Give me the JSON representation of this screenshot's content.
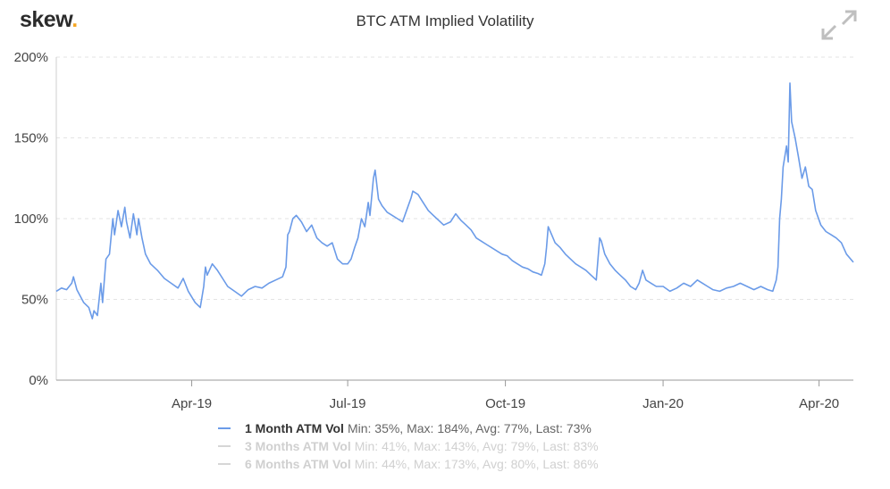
{
  "brand": {
    "name": "skew",
    "dot": ".",
    "accent": "#f5a623"
  },
  "header": {
    "title": "BTC ATM Implied Volatility",
    "expand_icon": "expand-arrows-icon"
  },
  "chart_data": {
    "type": "line",
    "title": "BTC ATM Implied Volatility",
    "xlabel": "",
    "ylabel": "",
    "y_unit": "%",
    "ylim": [
      0,
      200
    ],
    "yticks": [
      0,
      50,
      100,
      150,
      200
    ],
    "ytick_labels": [
      "0%",
      "50%",
      "100%",
      "150%",
      "200%"
    ],
    "xlim": [
      "2019-01-12",
      "2020-04-21"
    ],
    "xticks": [
      "2019-04-01",
      "2019-07-01",
      "2019-10-01",
      "2020-01-01",
      "2020-04-01"
    ],
    "xtick_labels": [
      "Apr-19",
      "Jul-19",
      "Oct-19",
      "Jan-20",
      "Apr-20"
    ],
    "grid": "horizontal dashed",
    "legend_position": "bottom",
    "series": [
      {
        "name": "1 Month ATM Vol",
        "stats": "Min: 35%, Max: 184%, Avg: 77%, Last: 73%",
        "color": "#6b9be8",
        "visible": true,
        "points": [
          [
            "2019-01-12",
            55
          ],
          [
            "2019-01-15",
            57
          ],
          [
            "2019-01-18",
            56
          ],
          [
            "2019-01-21",
            60
          ],
          [
            "2019-01-22",
            64
          ],
          [
            "2019-01-24",
            56
          ],
          [
            "2019-01-28",
            48
          ],
          [
            "2019-01-31",
            45
          ],
          [
            "2019-02-02",
            38
          ],
          [
            "2019-02-03",
            43
          ],
          [
            "2019-02-05",
            40
          ],
          [
            "2019-02-07",
            60
          ],
          [
            "2019-02-08",
            48
          ],
          [
            "2019-02-10",
            75
          ],
          [
            "2019-02-12",
            78
          ],
          [
            "2019-02-14",
            100
          ],
          [
            "2019-02-15",
            90
          ],
          [
            "2019-02-17",
            105
          ],
          [
            "2019-02-19",
            95
          ],
          [
            "2019-02-21",
            107
          ],
          [
            "2019-02-22",
            98
          ],
          [
            "2019-02-24",
            88
          ],
          [
            "2019-02-26",
            103
          ],
          [
            "2019-02-28",
            90
          ],
          [
            "2019-03-01",
            100
          ],
          [
            "2019-03-03",
            88
          ],
          [
            "2019-03-05",
            78
          ],
          [
            "2019-03-08",
            72
          ],
          [
            "2019-03-12",
            68
          ],
          [
            "2019-03-16",
            63
          ],
          [
            "2019-03-20",
            60
          ],
          [
            "2019-03-24",
            57
          ],
          [
            "2019-03-27",
            63
          ],
          [
            "2019-03-30",
            55
          ],
          [
            "2019-04-03",
            48
          ],
          [
            "2019-04-06",
            45
          ],
          [
            "2019-04-08",
            58
          ],
          [
            "2019-04-09",
            70
          ],
          [
            "2019-04-10",
            65
          ],
          [
            "2019-04-13",
            72
          ],
          [
            "2019-04-16",
            68
          ],
          [
            "2019-04-19",
            63
          ],
          [
            "2019-04-22",
            58
          ],
          [
            "2019-04-26",
            55
          ],
          [
            "2019-04-30",
            52
          ],
          [
            "2019-05-04",
            56
          ],
          [
            "2019-05-08",
            58
          ],
          [
            "2019-05-12",
            57
          ],
          [
            "2019-05-16",
            60
          ],
          [
            "2019-05-20",
            62
          ],
          [
            "2019-05-24",
            64
          ],
          [
            "2019-05-26",
            70
          ],
          [
            "2019-05-27",
            90
          ],
          [
            "2019-05-28",
            92
          ],
          [
            "2019-05-30",
            100
          ],
          [
            "2019-06-01",
            102
          ],
          [
            "2019-06-04",
            98
          ],
          [
            "2019-06-07",
            92
          ],
          [
            "2019-06-10",
            96
          ],
          [
            "2019-06-13",
            88
          ],
          [
            "2019-06-16",
            85
          ],
          [
            "2019-06-19",
            83
          ],
          [
            "2019-06-22",
            85
          ],
          [
            "2019-06-25",
            75
          ],
          [
            "2019-06-28",
            72
          ],
          [
            "2019-07-01",
            72
          ],
          [
            "2019-07-03",
            75
          ],
          [
            "2019-07-05",
            82
          ],
          [
            "2019-07-07",
            88
          ],
          [
            "2019-07-09",
            100
          ],
          [
            "2019-07-11",
            95
          ],
          [
            "2019-07-13",
            110
          ],
          [
            "2019-07-14",
            102
          ],
          [
            "2019-07-16",
            125
          ],
          [
            "2019-07-17",
            130
          ],
          [
            "2019-07-19",
            112
          ],
          [
            "2019-07-21",
            108
          ],
          [
            "2019-07-24",
            104
          ],
          [
            "2019-07-27",
            102
          ],
          [
            "2019-07-30",
            100
          ],
          [
            "2019-08-02",
            98
          ],
          [
            "2019-08-04",
            104
          ],
          [
            "2019-08-07",
            113
          ],
          [
            "2019-08-08",
            117
          ],
          [
            "2019-08-11",
            115
          ],
          [
            "2019-08-14",
            110
          ],
          [
            "2019-08-17",
            105
          ],
          [
            "2019-08-20",
            102
          ],
          [
            "2019-08-23",
            99
          ],
          [
            "2019-08-26",
            96
          ],
          [
            "2019-08-30",
            98
          ],
          [
            "2019-09-02",
            103
          ],
          [
            "2019-09-05",
            99
          ],
          [
            "2019-09-08",
            96
          ],
          [
            "2019-09-11",
            93
          ],
          [
            "2019-09-14",
            88
          ],
          [
            "2019-09-17",
            86
          ],
          [
            "2019-09-20",
            84
          ],
          [
            "2019-09-23",
            82
          ],
          [
            "2019-09-26",
            80
          ],
          [
            "2019-09-29",
            78
          ],
          [
            "2019-10-02",
            77
          ],
          [
            "2019-10-05",
            74
          ],
          [
            "2019-10-08",
            72
          ],
          [
            "2019-10-11",
            70
          ],
          [
            "2019-10-14",
            69
          ],
          [
            "2019-10-17",
            67
          ],
          [
            "2019-10-20",
            66
          ],
          [
            "2019-10-22",
            65
          ],
          [
            "2019-10-24",
            72
          ],
          [
            "2019-10-25",
            82
          ],
          [
            "2019-10-26",
            95
          ],
          [
            "2019-10-28",
            90
          ],
          [
            "2019-10-30",
            85
          ],
          [
            "2019-11-02",
            82
          ],
          [
            "2019-11-05",
            78
          ],
          [
            "2019-11-08",
            75
          ],
          [
            "2019-11-11",
            72
          ],
          [
            "2019-11-14",
            70
          ],
          [
            "2019-11-17",
            68
          ],
          [
            "2019-11-20",
            65
          ],
          [
            "2019-11-23",
            62
          ],
          [
            "2019-11-24",
            75
          ],
          [
            "2019-11-25",
            88
          ],
          [
            "2019-11-26",
            86
          ],
          [
            "2019-11-28",
            78
          ],
          [
            "2019-12-01",
            72
          ],
          [
            "2019-12-04",
            68
          ],
          [
            "2019-12-07",
            65
          ],
          [
            "2019-12-10",
            62
          ],
          [
            "2019-12-13",
            58
          ],
          [
            "2019-12-16",
            56
          ],
          [
            "2019-12-18",
            60
          ],
          [
            "2019-12-20",
            68
          ],
          [
            "2019-12-22",
            62
          ],
          [
            "2019-12-25",
            60
          ],
          [
            "2019-12-28",
            58
          ],
          [
            "2020-01-01",
            58
          ],
          [
            "2020-01-05",
            55
          ],
          [
            "2020-01-09",
            57
          ],
          [
            "2020-01-13",
            60
          ],
          [
            "2020-01-17",
            58
          ],
          [
            "2020-01-21",
            62
          ],
          [
            "2020-01-24",
            60
          ],
          [
            "2020-01-27",
            58
          ],
          [
            "2020-01-30",
            56
          ],
          [
            "2020-02-03",
            55
          ],
          [
            "2020-02-07",
            57
          ],
          [
            "2020-02-11",
            58
          ],
          [
            "2020-02-15",
            60
          ],
          [
            "2020-02-19",
            58
          ],
          [
            "2020-02-23",
            56
          ],
          [
            "2020-02-27",
            58
          ],
          [
            "2020-03-02",
            56
          ],
          [
            "2020-03-05",
            55
          ],
          [
            "2020-03-07",
            62
          ],
          [
            "2020-03-08",
            70
          ],
          [
            "2020-03-09",
            100
          ],
          [
            "2020-03-10",
            112
          ],
          [
            "2020-03-11",
            132
          ],
          [
            "2020-03-13",
            145
          ],
          [
            "2020-03-14",
            135
          ],
          [
            "2020-03-15",
            184
          ],
          [
            "2020-03-16",
            160
          ],
          [
            "2020-03-18",
            150
          ],
          [
            "2020-03-20",
            138
          ],
          [
            "2020-03-22",
            125
          ],
          [
            "2020-03-24",
            132
          ],
          [
            "2020-03-26",
            120
          ],
          [
            "2020-03-28",
            118
          ],
          [
            "2020-03-30",
            105
          ],
          [
            "2020-04-02",
            96
          ],
          [
            "2020-04-05",
            92
          ],
          [
            "2020-04-08",
            90
          ],
          [
            "2020-04-11",
            88
          ],
          [
            "2020-04-14",
            85
          ],
          [
            "2020-04-17",
            78
          ],
          [
            "2020-04-21",
            73
          ]
        ]
      },
      {
        "name": "3 Months ATM Vol",
        "stats": "Min: 41%, Max: 143%, Avg: 79%, Last: 83%",
        "color": "#cccccc",
        "visible": false,
        "points": []
      },
      {
        "name": "6 Months ATM Vol",
        "stats": "Min: 44%, Max: 173%, Avg: 80%, Last: 86%",
        "color": "#cccccc",
        "visible": false,
        "points": []
      }
    ]
  }
}
